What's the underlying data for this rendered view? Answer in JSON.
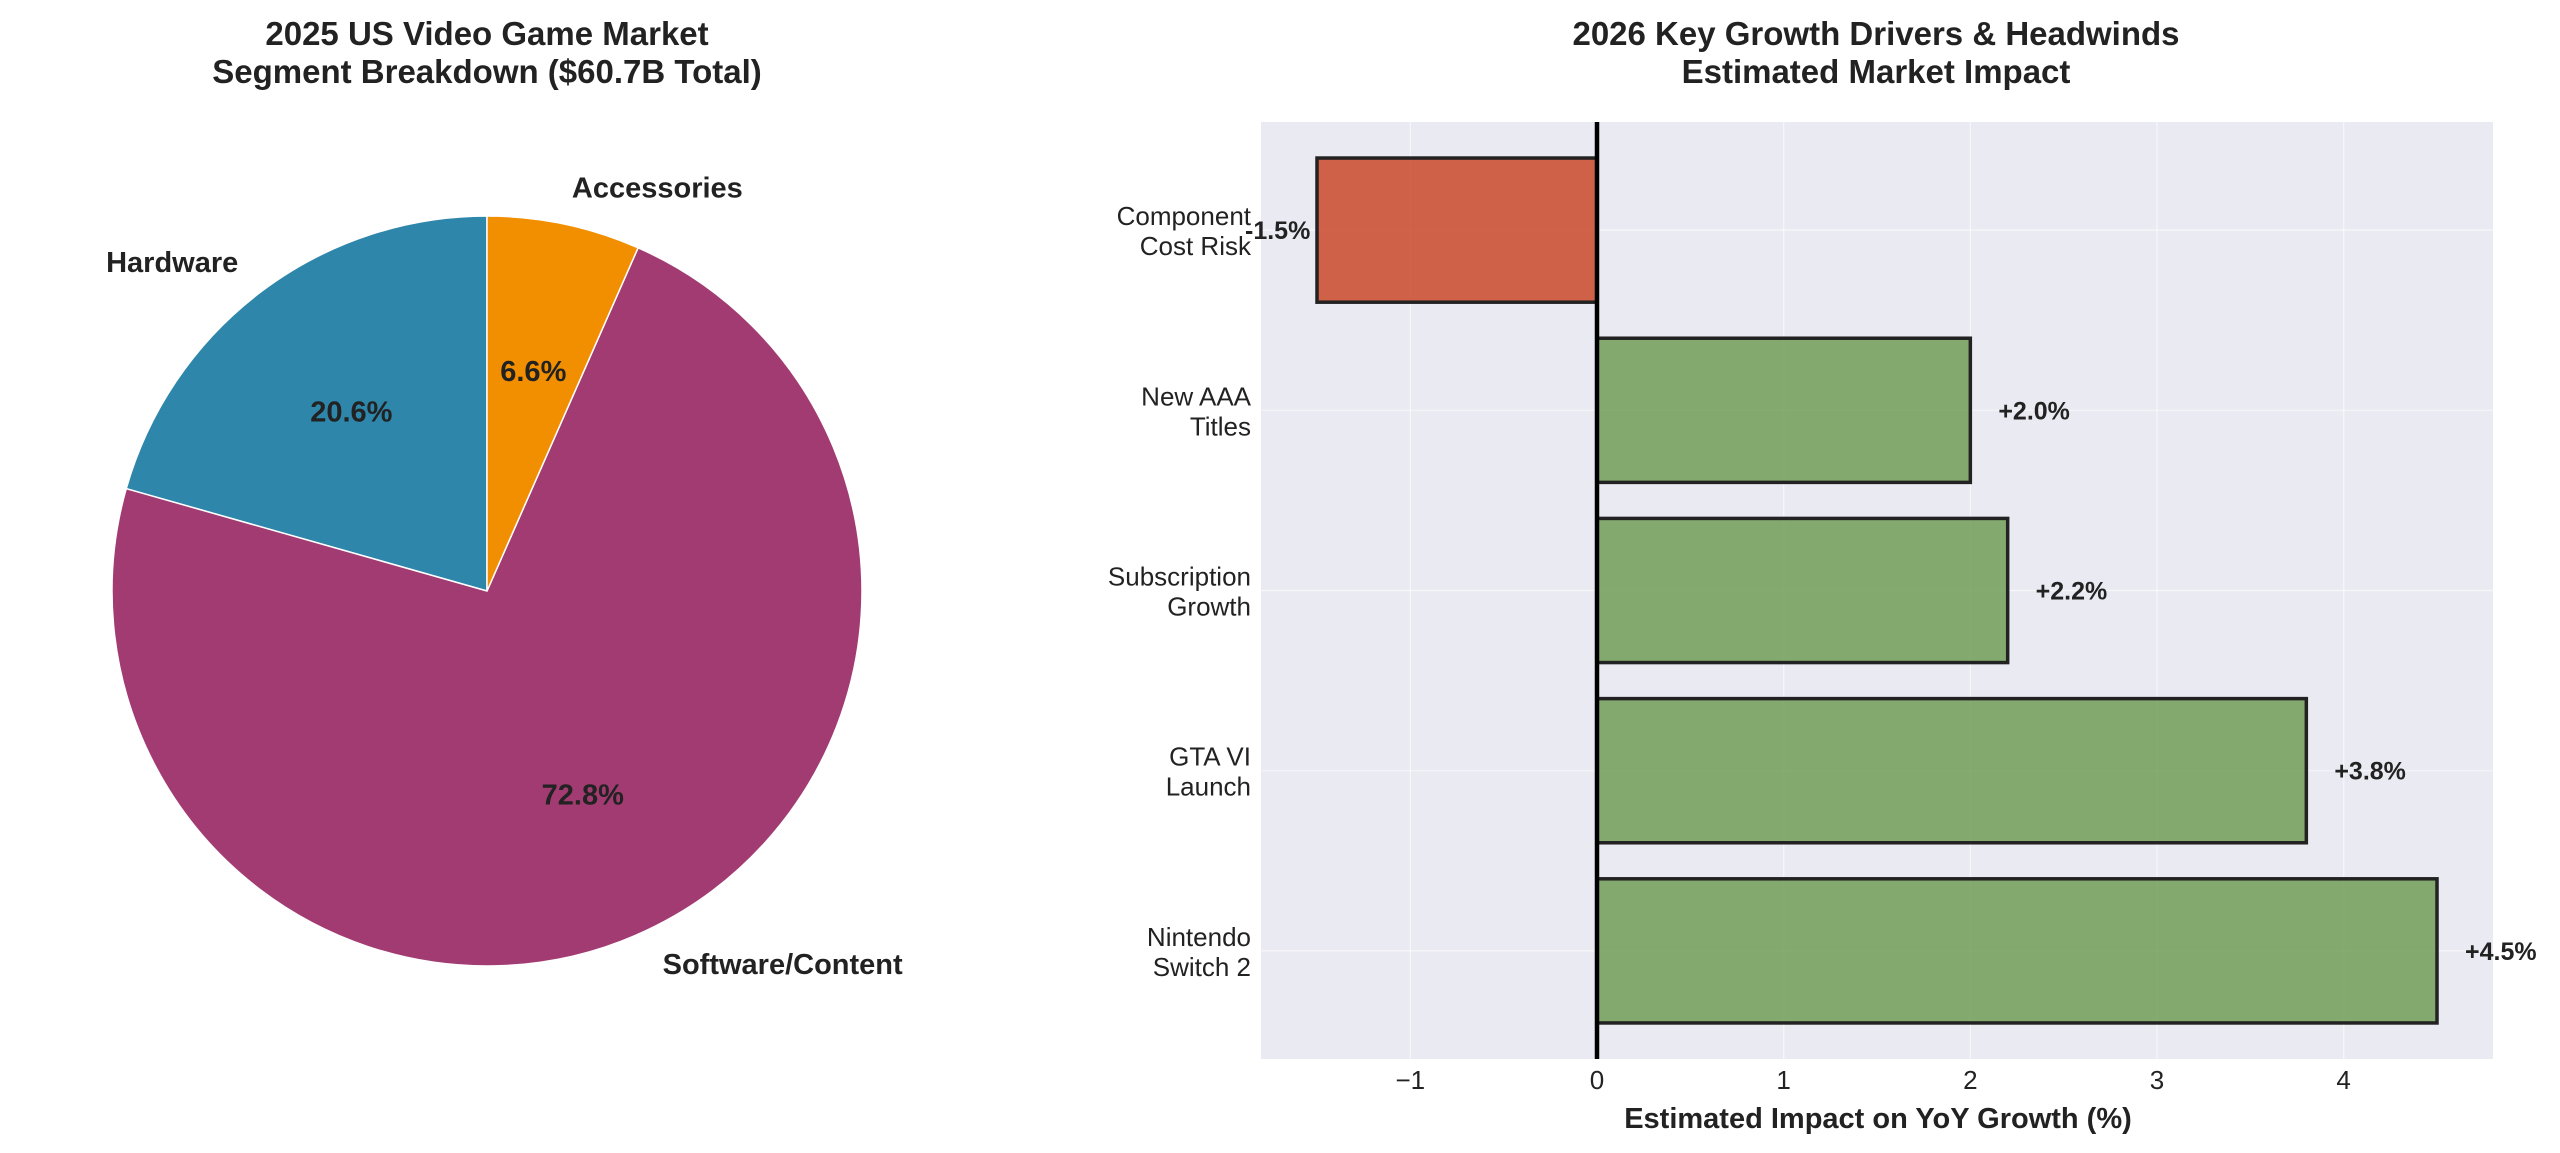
{
  "chart_data": [
    {
      "type": "pie",
      "title_lines": [
        "2025 US Video Game Market",
        "Segment Breakdown ($60.7B Total)"
      ],
      "start_angle_deg": 90,
      "direction": "counterclockwise",
      "slices": [
        {
          "label": "Hardware",
          "value": 20.6,
          "pct_label": "20.6%",
          "color": "#2E86AB"
        },
        {
          "label": "Software/Content",
          "value": 72.8,
          "pct_label": "72.8%",
          "color": "#A23B72"
        },
        {
          "label": "Accessories",
          "value": 6.6,
          "pct_label": "6.6%",
          "color": "#F18F01"
        }
      ]
    },
    {
      "type": "bar",
      "orientation": "horizontal",
      "title_lines": [
        "2026 Key Growth Drivers & Headwinds",
        "Estimated Market Impact"
      ],
      "xlabel": "Estimated Impact on YoY Growth (%)",
      "xlim": [
        -1.8,
        4.8
      ],
      "xticks": [
        -1,
        0,
        1,
        2,
        3,
        4
      ],
      "xtick_labels": [
        "−1",
        "0",
        "1",
        "2",
        "3",
        "4"
      ],
      "grid": true,
      "background": "#EAEAF2",
      "categories": [
        {
          "lines": [
            "Nintendo",
            "Switch 2"
          ],
          "value": 4.5,
          "value_label": "+4.5%",
          "color": "#6A994E"
        },
        {
          "lines": [
            "GTA VI",
            "Launch"
          ],
          "value": 3.8,
          "value_label": "+3.8%",
          "color": "#6A994E"
        },
        {
          "lines": [
            "Subscription",
            "Growth"
          ],
          "value": 2.2,
          "value_label": "+2.2%",
          "color": "#6A994E"
        },
        {
          "lines": [
            "New AAA",
            "Titles"
          ],
          "value": 2.0,
          "value_label": "+2.0%",
          "color": "#6A994E"
        },
        {
          "lines": [
            "Component",
            "Cost Risk"
          ],
          "value": -1.5,
          "value_label": "-1.5%",
          "color": "#C73E1D"
        }
      ]
    }
  ]
}
